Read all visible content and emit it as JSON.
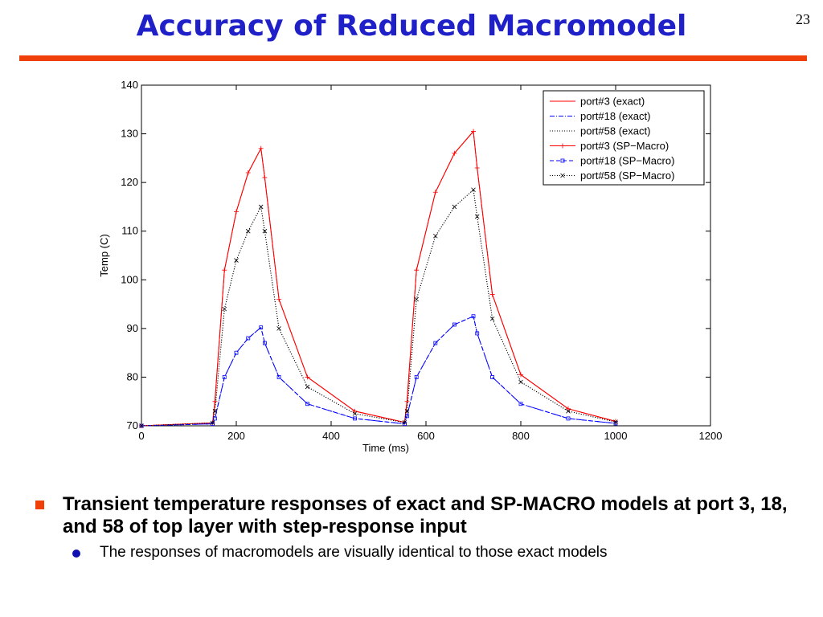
{
  "slide": {
    "title": "Accuracy of Reduced Macromodel",
    "page_number": "23",
    "accent_color": "#f0400a",
    "title_color": "#2020c8"
  },
  "chart_data": {
    "type": "line",
    "title": "",
    "xlabel": "Time (ms)",
    "ylabel": "Temp (C)",
    "xlim": [
      0,
      1200
    ],
    "ylim": [
      70,
      140
    ],
    "xticks": [
      0,
      200,
      400,
      600,
      800,
      1000,
      1200
    ],
    "yticks": [
      70,
      80,
      90,
      100,
      110,
      120,
      130,
      140
    ],
    "grid": false,
    "legend_position": "top-right",
    "series": [
      {
        "name": "port#3 (exact)",
        "color": "#ff0000",
        "dash": "solid",
        "marker": "none",
        "x": [
          0,
          150,
          155,
          175,
          200,
          225,
          252,
          260,
          290,
          350,
          450,
          555,
          560,
          580,
          620,
          660,
          700,
          708,
          740,
          800,
          900,
          1000
        ],
        "y": [
          70,
          70.6,
          75,
          102,
          114,
          122,
          127,
          121,
          96,
          80,
          73,
          70.7,
          75,
          102,
          118,
          126,
          130.5,
          123,
          97,
          80.5,
          73.5,
          70.9
        ]
      },
      {
        "name": "port#18 (exact)",
        "color": "#0000ff",
        "dash": "dashdot",
        "marker": "none",
        "x": [
          0,
          150,
          155,
          175,
          200,
          225,
          252,
          260,
          290,
          350,
          450,
          555,
          560,
          580,
          620,
          660,
          700,
          708,
          740,
          800,
          900,
          1000
        ],
        "y": [
          70,
          70.4,
          71.5,
          80,
          85,
          88,
          90.2,
          87,
          80,
          74.5,
          71.5,
          70.4,
          72,
          80,
          87,
          90.8,
          92.5,
          89,
          80,
          74.5,
          71.5,
          70.5
        ]
      },
      {
        "name": "port#58 (exact)",
        "color": "#000000",
        "dash": "dotted",
        "marker": "none",
        "x": [
          0,
          150,
          155,
          175,
          200,
          225,
          252,
          260,
          290,
          350,
          450,
          555,
          560,
          580,
          620,
          660,
          700,
          708,
          740,
          800,
          900,
          1000
        ],
        "y": [
          70,
          70.6,
          73,
          94,
          104,
          110,
          115,
          110,
          90,
          78,
          72.5,
          70.7,
          73,
          96,
          109,
          115,
          118.5,
          113,
          92,
          79,
          73,
          70.8
        ]
      },
      {
        "name": "port#3 (SP−Macro)",
        "color": "#ff0000",
        "dash": "solid",
        "marker": "plus",
        "x": [
          0,
          150,
          155,
          175,
          200,
          225,
          252,
          260,
          290,
          350,
          450,
          555,
          560,
          580,
          620,
          660,
          700,
          708,
          740,
          800,
          900,
          1000
        ],
        "y": [
          70,
          70.6,
          75,
          102,
          114,
          122,
          127,
          121,
          96,
          80,
          73,
          70.7,
          75,
          102,
          118,
          126,
          130.5,
          123,
          97,
          80.5,
          73.5,
          70.9
        ]
      },
      {
        "name": "port#18 (SP−Macro)",
        "color": "#0000ff",
        "dash": "dashed",
        "marker": "square",
        "x": [
          0,
          150,
          155,
          175,
          200,
          225,
          252,
          260,
          290,
          350,
          450,
          555,
          560,
          580,
          620,
          660,
          700,
          708,
          740,
          800,
          900,
          1000
        ],
        "y": [
          70,
          70.4,
          71.5,
          80,
          85,
          88,
          90.2,
          87,
          80,
          74.5,
          71.5,
          70.4,
          72,
          80,
          87,
          90.8,
          92.5,
          89,
          80,
          74.5,
          71.5,
          70.5
        ]
      },
      {
        "name": "port#58 (SP−Macro)",
        "color": "#000000",
        "dash": "dotted",
        "marker": "x",
        "x": [
          0,
          150,
          155,
          175,
          200,
          225,
          252,
          260,
          290,
          350,
          450,
          555,
          560,
          580,
          620,
          660,
          700,
          708,
          740,
          800,
          900,
          1000
        ],
        "y": [
          70,
          70.6,
          73,
          94,
          104,
          110,
          115,
          110,
          90,
          78,
          72.5,
          70.7,
          73,
          96,
          109,
          115,
          118.5,
          113,
          92,
          79,
          73,
          70.8
        ]
      }
    ]
  },
  "bullets": {
    "main": "Transient temperature responses of exact and SP-MACRO models at port 3, 18, and 58 of top layer with step-response input",
    "sub": "The responses of macromodels are visually identical to those exact models"
  }
}
